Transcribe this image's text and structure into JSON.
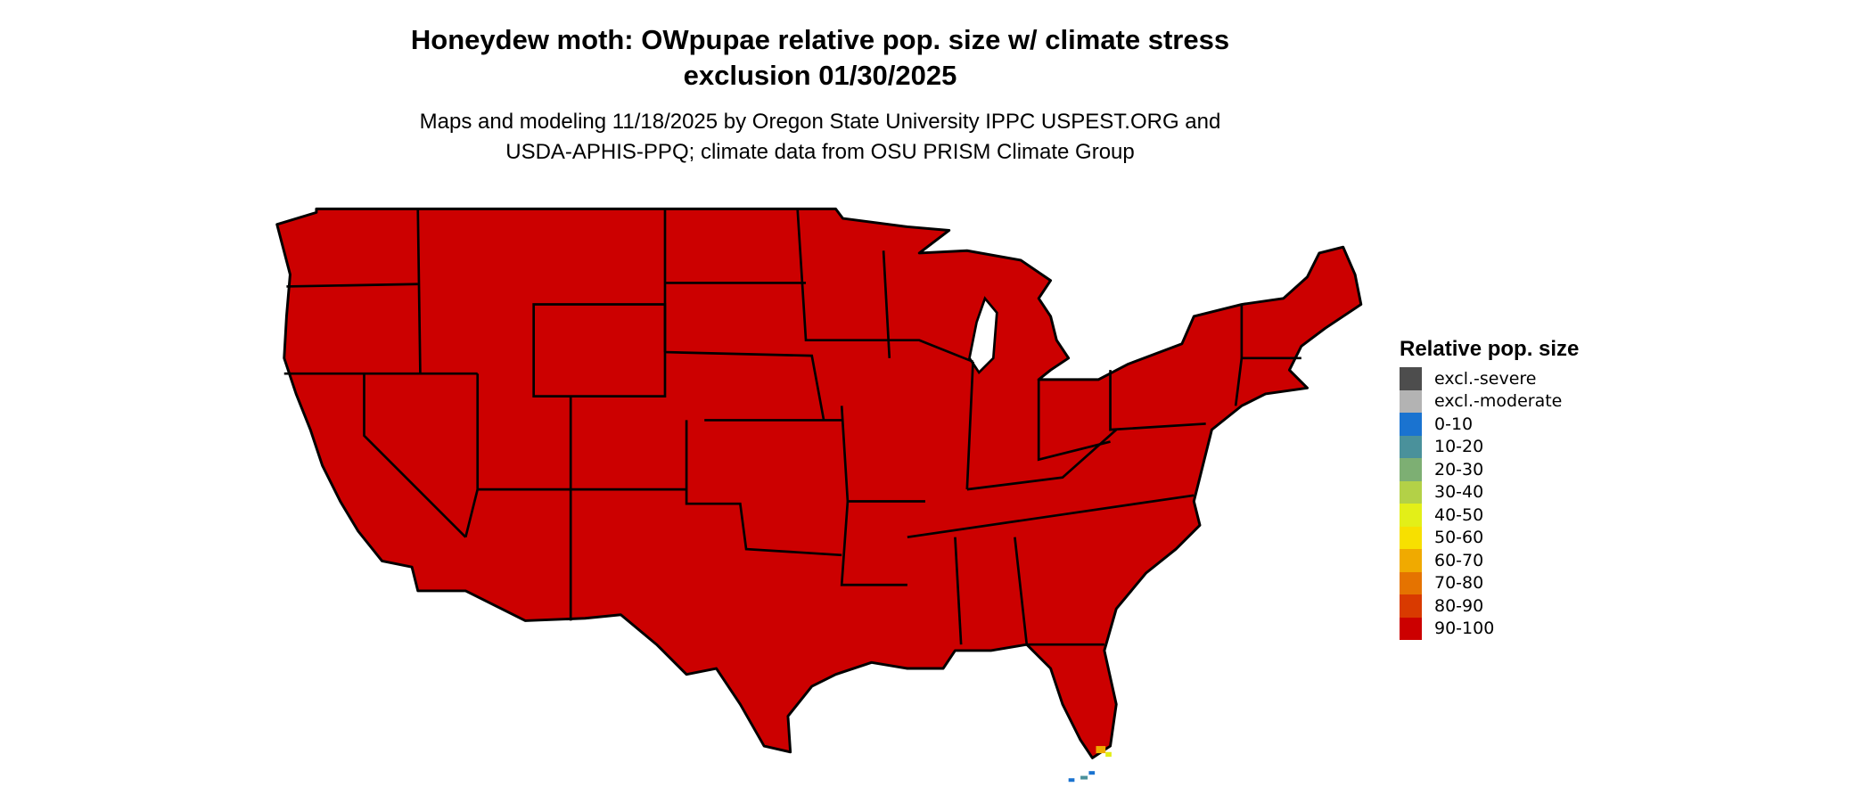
{
  "title": {
    "line1": "Honeydew moth: OWpupae relative pop. size w/ climate stress",
    "line2": "exclusion 01/30/2025"
  },
  "subtitle": {
    "line1": "Maps and modeling 11/18/2025 by Oregon State University IPPC USPEST.ORG and",
    "line2": "USDA-APHIS-PPQ; climate data from OSU PRISM Climate Group"
  },
  "map": {
    "region": "Contiguous United States",
    "dominant_class": "90-100",
    "fill_color": "#cc0000",
    "border_color": "#000000"
  },
  "legend": {
    "title": "Relative pop. size",
    "items": [
      {
        "label": "excl.-severe",
        "color": "#4d4d4d"
      },
      {
        "label": "excl.-moderate",
        "color": "#b3b3b3"
      },
      {
        "label": "0-10",
        "color": "#1a73d0"
      },
      {
        "label": "10-20",
        "color": "#4a919b"
      },
      {
        "label": "20-30",
        "color": "#7daf73"
      },
      {
        "label": "30-40",
        "color": "#b3d147"
      },
      {
        "label": "40-50",
        "color": "#e3ef18"
      },
      {
        "label": "50-60",
        "color": "#f7e000"
      },
      {
        "label": "60-70",
        "color": "#f0aa00"
      },
      {
        "label": "70-80",
        "color": "#e57300"
      },
      {
        "label": "80-90",
        "color": "#d93a00"
      },
      {
        "label": "90-100",
        "color": "#cc0000"
      }
    ]
  }
}
